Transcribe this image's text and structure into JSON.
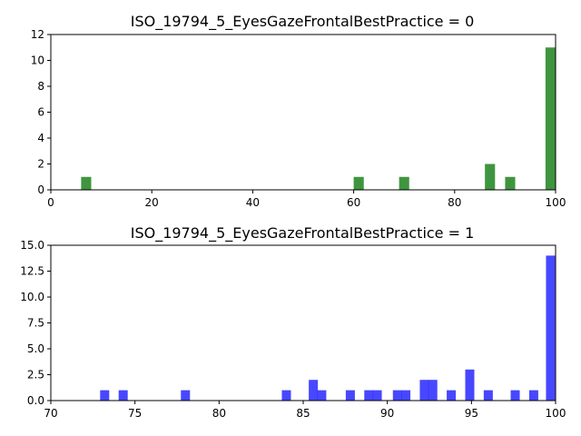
{
  "chart_data": [
    {
      "type": "bar",
      "title": "ISO_19794_5_EyesGazeFrontalBestPractice = 0",
      "xlabel": "",
      "ylabel": "",
      "xlim": [
        0,
        100
      ],
      "ylim": [
        0,
        12
      ],
      "xticks": [
        "0",
        "20",
        "40",
        "60",
        "80",
        "100"
      ],
      "yticks": [
        "0",
        "2",
        "4",
        "6",
        "8",
        "10",
        "12"
      ],
      "color": "#2a8a2a",
      "bin_width": 2,
      "bars": [
        {
          "x": 7,
          "value": 1
        },
        {
          "x": 61,
          "value": 1
        },
        {
          "x": 70,
          "value": 1
        },
        {
          "x": 87,
          "value": 2
        },
        {
          "x": 91,
          "value": 1
        },
        {
          "x": 99,
          "value": 11
        }
      ]
    },
    {
      "type": "bar",
      "title": "ISO_19794_5_EyesGazeFrontalBestPractice = 1",
      "xlabel": "",
      "ylabel": "",
      "xlim": [
        70,
        100
      ],
      "ylim": [
        0,
        15
      ],
      "xticks": [
        "70",
        "75",
        "80",
        "85",
        "90",
        "95",
        "100"
      ],
      "yticks": [
        "0.0",
        "2.5",
        "5.0",
        "7.5",
        "10.0",
        "12.5",
        "15.0"
      ],
      "color": "#3333ff",
      "bin_width": 0.54,
      "bars": [
        {
          "x": 73.2,
          "value": 1
        },
        {
          "x": 74.3,
          "value": 1
        },
        {
          "x": 78.0,
          "value": 1
        },
        {
          "x": 84.0,
          "value": 1
        },
        {
          "x": 85.6,
          "value": 2
        },
        {
          "x": 86.1,
          "value": 1
        },
        {
          "x": 87.8,
          "value": 1
        },
        {
          "x": 88.9,
          "value": 1
        },
        {
          "x": 89.4,
          "value": 1
        },
        {
          "x": 90.6,
          "value": 1
        },
        {
          "x": 91.1,
          "value": 1
        },
        {
          "x": 92.2,
          "value": 2
        },
        {
          "x": 92.7,
          "value": 2
        },
        {
          "x": 93.8,
          "value": 1
        },
        {
          "x": 94.9,
          "value": 3
        },
        {
          "x": 96.0,
          "value": 1
        },
        {
          "x": 97.6,
          "value": 1
        },
        {
          "x": 98.7,
          "value": 1
        },
        {
          "x": 99.7,
          "value": 14
        }
      ]
    }
  ]
}
